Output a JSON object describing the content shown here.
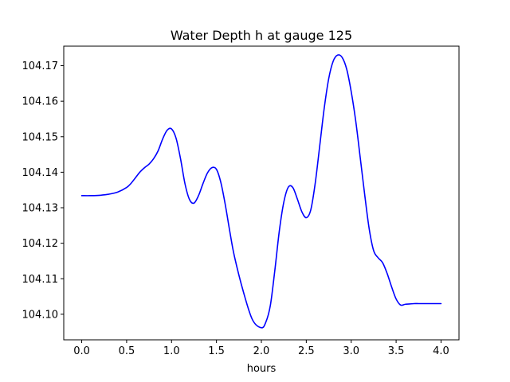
{
  "chart_data": {
    "type": "line",
    "title": "Water Depth h at gauge 125",
    "xlabel": "hours",
    "ylabel": "",
    "xlim": [
      -0.2,
      4.2
    ],
    "ylim": [
      104.0928,
      104.1755
    ],
    "xticks": [
      0.0,
      0.5,
      1.0,
      1.5,
      2.0,
      2.5,
      3.0,
      3.5,
      4.0
    ],
    "xtick_labels": [
      "0.0",
      "0.5",
      "1.0",
      "1.5",
      "2.0",
      "2.5",
      "3.0",
      "3.5",
      "4.0"
    ],
    "yticks": [
      104.1,
      104.11,
      104.12,
      104.13,
      104.14,
      104.15,
      104.16,
      104.17
    ],
    "ytick_labels": [
      "104.10",
      "104.11",
      "104.12",
      "104.13",
      "104.14",
      "104.15",
      "104.16",
      "104.17"
    ],
    "grid": false,
    "series": [
      {
        "color": "#0000ff",
        "x": [
          0.0,
          0.1,
          0.2,
          0.3,
          0.4,
          0.5,
          0.55,
          0.6,
          0.65,
          0.7,
          0.75,
          0.8,
          0.85,
          0.9,
          0.95,
          1.0,
          1.05,
          1.1,
          1.15,
          1.2,
          1.25,
          1.3,
          1.35,
          1.4,
          1.45,
          1.5,
          1.55,
          1.6,
          1.65,
          1.7,
          1.8,
          1.9,
          2.0,
          2.05,
          2.1,
          2.15,
          2.2,
          2.25,
          2.3,
          2.35,
          2.4,
          2.45,
          2.5,
          2.55,
          2.6,
          2.65,
          2.7,
          2.75,
          2.8,
          2.85,
          2.9,
          2.95,
          3.0,
          3.05,
          3.1,
          3.15,
          3.2,
          3.25,
          3.3,
          3.35,
          3.4,
          3.45,
          3.5,
          3.55,
          3.6,
          3.65,
          3.7,
          3.75,
          3.8,
          3.85,
          3.9,
          3.95,
          4.0
        ],
        "y": [
          104.1334,
          104.1334,
          104.1335,
          104.1338,
          104.1344,
          104.1357,
          104.1369,
          104.1385,
          104.1401,
          104.1413,
          104.1423,
          104.1438,
          104.146,
          104.1493,
          104.1518,
          104.1522,
          104.1496,
          104.1438,
          104.1367,
          104.1323,
          104.1313,
          104.1334,
          104.1368,
          104.1398,
          104.1413,
          104.1408,
          104.137,
          104.1306,
          104.1231,
          104.1163,
          104.1063,
          104.0985,
          104.0962,
          104.0978,
          104.1025,
          104.1124,
          104.1235,
          104.1316,
          104.1358,
          104.1357,
          104.1325,
          104.1289,
          104.1272,
          104.1294,
          104.137,
          104.1475,
          104.1581,
          104.1664,
          104.1713,
          104.173,
          104.1723,
          104.169,
          104.1627,
          104.1545,
          104.1442,
          104.1337,
          104.1241,
          104.1179,
          104.1159,
          104.1145,
          104.1115,
          104.1077,
          104.1043,
          104.1026,
          104.1028,
          104.1029,
          104.103,
          104.103,
          104.103,
          104.103,
          104.103,
          104.103,
          104.103
        ]
      }
    ]
  }
}
